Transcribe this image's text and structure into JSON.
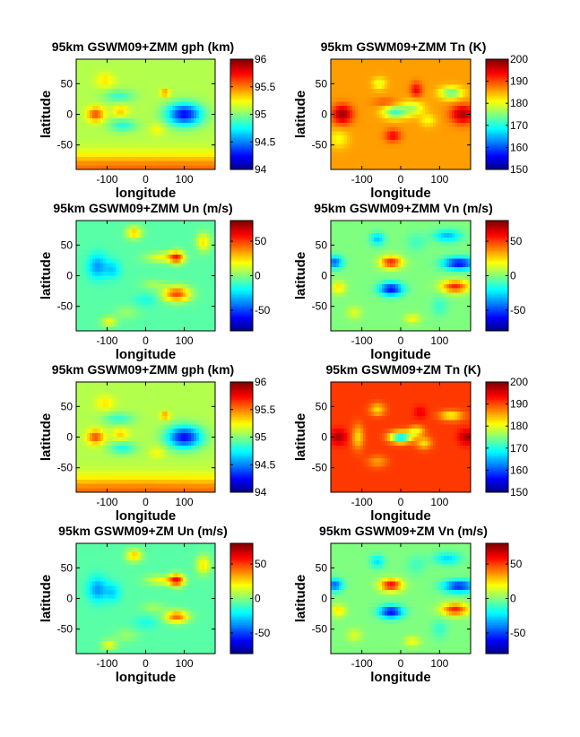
{
  "chart_data": [
    {
      "type": "heatmap",
      "title": "95km GSWM09+ZMM gph (km)",
      "xlabel": "longitude",
      "ylabel": "latitude",
      "xlim": [
        -180,
        180
      ],
      "ylim": [
        -90,
        90
      ],
      "xticks": [
        -100,
        0,
        100
      ],
      "yticks": [
        -50,
        0,
        50
      ],
      "colormap": "jet",
      "clim": [
        94,
        96
      ],
      "colorbar_ticks": [
        94,
        94.5,
        95,
        95.5,
        96
      ],
      "field": {
        "base": 95.1,
        "features": [
          [
            -130,
            0,
            0.5,
            22,
            12
          ],
          [
            -65,
            5,
            0.25,
            20,
            10
          ],
          [
            -105,
            55,
            0.2,
            25,
            12
          ],
          [
            50,
            35,
            0.4,
            12,
            6
          ],
          [
            100,
            0,
            -0.85,
            45,
            18
          ],
          [
            -60,
            -18,
            -0.3,
            35,
            10
          ],
          [
            -70,
            30,
            -0.25,
            40,
            10
          ],
          [
            30,
            -25,
            0.15,
            20,
            10
          ],
          [
            0,
            -90,
            0.45,
            1000,
            25
          ]
        ]
      }
    },
    {
      "type": "heatmap",
      "title": "95km GSWM09+ZMM Tn (K)",
      "xlabel": "longitude",
      "ylabel": "latitude",
      "xlim": [
        -180,
        180
      ],
      "ylim": [
        -90,
        90
      ],
      "xticks": [
        -100,
        0,
        100
      ],
      "yticks": [
        -50,
        0,
        50
      ],
      "colormap": "jet",
      "clim": [
        150,
        200
      ],
      "colorbar_ticks": [
        150,
        160,
        170,
        180,
        190,
        200
      ],
      "field": {
        "base": 186,
        "features": [
          [
            -150,
            0,
            13,
            25,
            15
          ],
          [
            160,
            0,
            12,
            30,
            15
          ],
          [
            -15,
            3,
            -14,
            30,
            10
          ],
          [
            30,
            10,
            -8,
            30,
            12
          ],
          [
            70,
            -10,
            -5,
            20,
            10
          ],
          [
            -20,
            -35,
            8,
            20,
            10
          ],
          [
            40,
            40,
            8,
            15,
            12
          ],
          [
            -55,
            50,
            -6,
            18,
            10
          ],
          [
            130,
            35,
            -12,
            30,
            10
          ],
          [
            -160,
            -40,
            -5,
            25,
            15
          ],
          [
            -40,
            20,
            4,
            30,
            6
          ]
        ]
      }
    },
    {
      "type": "heatmap",
      "title": "95km GSWM09+ZMM Un (m/s)",
      "xlabel": "longitude",
      "ylabel": "latitude",
      "xlim": [
        -180,
        180
      ],
      "ylim": [
        -90,
        90
      ],
      "xticks": [
        -100,
        0,
        100
      ],
      "yticks": [
        -50,
        0,
        50
      ],
      "colormap": "jet",
      "clim": [
        -80,
        80
      ],
      "colorbar_ticks": [
        -50,
        0,
        50
      ],
      "field": {
        "base": -6,
        "features": [
          [
            -125,
            15,
            -30,
            25,
            20
          ],
          [
            -85,
            10,
            -20,
            20,
            15
          ],
          [
            80,
            30,
            55,
            20,
            10
          ],
          [
            80,
            -30,
            55,
            35,
            12
          ],
          [
            40,
            30,
            25,
            40,
            8
          ],
          [
            -30,
            70,
            35,
            20,
            10
          ],
          [
            150,
            55,
            30,
            18,
            15
          ],
          [
            -95,
            -75,
            25,
            20,
            8
          ],
          [
            0,
            -40,
            -10,
            30,
            10
          ],
          [
            20,
            -15,
            12,
            30,
            8
          ],
          [
            -50,
            -60,
            10,
            30,
            10
          ]
        ]
      }
    },
    {
      "type": "heatmap",
      "title": "95km GSWM09+ZMM Vn (m/s)",
      "xlabel": "longitude",
      "ylabel": "latitude",
      "xlim": [
        -180,
        180
      ],
      "ylim": [
        -90,
        90
      ],
      "xticks": [
        -100,
        0,
        100
      ],
      "yticks": [
        -50,
        0,
        50
      ],
      "colormap": "jet",
      "clim": [
        -80,
        80
      ],
      "colorbar_ticks": [
        -50,
        0,
        50
      ],
      "field": {
        "base": 0,
        "features": [
          [
            -25,
            22,
            55,
            28,
            10
          ],
          [
            -25,
            -22,
            -60,
            30,
            10
          ],
          [
            150,
            20,
            -60,
            40,
            10
          ],
          [
            140,
            -18,
            55,
            35,
            10
          ],
          [
            -170,
            22,
            -45,
            20,
            10
          ],
          [
            -160,
            -20,
            25,
            18,
            10
          ],
          [
            -60,
            60,
            -30,
            18,
            10
          ],
          [
            120,
            65,
            -30,
            35,
            10
          ],
          [
            -120,
            -60,
            15,
            20,
            10
          ],
          [
            30,
            -70,
            20,
            20,
            8
          ],
          [
            100,
            -50,
            -12,
            20,
            15
          ],
          [
            40,
            55,
            -10,
            25,
            15
          ]
        ]
      }
    },
    {
      "type": "heatmap",
      "title": "95km GSWM09+ZMM gph (km)",
      "xlabel": "longitude",
      "ylabel": "latitude",
      "xlim": [
        -180,
        180
      ],
      "ylim": [
        -90,
        90
      ],
      "xticks": [
        -100,
        0,
        100
      ],
      "yticks": [
        -50,
        0,
        50
      ],
      "colormap": "jet",
      "clim": [
        94,
        96
      ],
      "colorbar_ticks": [
        94,
        94.5,
        95,
        95.5,
        96
      ],
      "field": {
        "base": 95.1,
        "features": [
          [
            -130,
            0,
            0.5,
            22,
            12
          ],
          [
            -65,
            5,
            0.25,
            20,
            10
          ],
          [
            -105,
            55,
            0.2,
            25,
            12
          ],
          [
            50,
            35,
            0.4,
            12,
            6
          ],
          [
            100,
            0,
            -0.85,
            45,
            18
          ],
          [
            -60,
            -18,
            -0.3,
            35,
            10
          ],
          [
            -70,
            30,
            -0.25,
            40,
            10
          ],
          [
            30,
            -25,
            0.15,
            20,
            10
          ],
          [
            0,
            -90,
            0.45,
            1000,
            25
          ]
        ]
      }
    },
    {
      "type": "heatmap",
      "title": "95km GSWM09+ZM Tn (K)",
      "xlabel": "longitude",
      "ylabel": "latitude",
      "xlim": [
        -180,
        180
      ],
      "ylim": [
        -90,
        90
      ],
      "xticks": [
        -100,
        0,
        100
      ],
      "yticks": [
        -50,
        0,
        50
      ],
      "colormap": "jet",
      "clim": [
        150,
        200
      ],
      "colorbar_ticks": [
        150,
        160,
        170,
        180,
        190,
        200
      ],
      "field": {
        "base": 191,
        "features": [
          [
            -160,
            0,
            7,
            20,
            12
          ],
          [
            170,
            0,
            7,
            20,
            12
          ],
          [
            0,
            0,
            -24,
            28,
            9
          ],
          [
            40,
            10,
            -10,
            20,
            8
          ],
          [
            60,
            -10,
            -8,
            20,
            10
          ],
          [
            -60,
            45,
            -8,
            20,
            10
          ],
          [
            50,
            40,
            4,
            15,
            10
          ],
          [
            130,
            35,
            -10,
            30,
            8
          ],
          [
            -60,
            -40,
            -5,
            25,
            10
          ],
          [
            -110,
            0,
            -8,
            15,
            20
          ]
        ]
      }
    },
    {
      "type": "heatmap",
      "title": "95km GSWM09+ZM Un (m/s)",
      "xlabel": "longitude",
      "ylabel": "latitude",
      "xlim": [
        -180,
        180
      ],
      "ylim": [
        -90,
        90
      ],
      "xticks": [
        -100,
        0,
        100
      ],
      "yticks": [
        -50,
        0,
        50
      ],
      "colormap": "jet",
      "clim": [
        -80,
        80
      ],
      "colorbar_ticks": [
        -50,
        0,
        50
      ],
      "field": {
        "base": -6,
        "features": [
          [
            -125,
            15,
            -30,
            25,
            20
          ],
          [
            -85,
            10,
            -20,
            20,
            15
          ],
          [
            80,
            30,
            60,
            20,
            10
          ],
          [
            80,
            -30,
            50,
            30,
            10
          ],
          [
            40,
            30,
            25,
            40,
            8
          ],
          [
            -30,
            70,
            35,
            20,
            10
          ],
          [
            150,
            55,
            30,
            18,
            15
          ],
          [
            -95,
            -75,
            25,
            20,
            8
          ],
          [
            0,
            -40,
            -10,
            30,
            10
          ],
          [
            20,
            -15,
            12,
            30,
            8
          ],
          [
            -50,
            -60,
            10,
            30,
            10
          ]
        ]
      }
    },
    {
      "type": "heatmap",
      "title": "95km GSWM09+ZM Vn (m/s)",
      "xlabel": "longitude",
      "ylabel": "latitude",
      "xlim": [
        -180,
        180
      ],
      "ylim": [
        -90,
        90
      ],
      "xticks": [
        -100,
        0,
        100
      ],
      "yticks": [
        -50,
        0,
        50
      ],
      "colormap": "jet",
      "clim": [
        -80,
        80
      ],
      "colorbar_ticks": [
        -50,
        0,
        50
      ],
      "field": {
        "base": 0,
        "features": [
          [
            -25,
            22,
            60,
            28,
            10
          ],
          [
            -25,
            -22,
            -60,
            30,
            10
          ],
          [
            150,
            20,
            -55,
            40,
            10
          ],
          [
            140,
            -18,
            55,
            35,
            10
          ],
          [
            -170,
            22,
            -45,
            20,
            10
          ],
          [
            -160,
            -20,
            25,
            18,
            10
          ],
          [
            -60,
            60,
            -25,
            18,
            10
          ],
          [
            120,
            65,
            -25,
            35,
            10
          ],
          [
            -120,
            -60,
            15,
            20,
            10
          ],
          [
            30,
            -70,
            20,
            20,
            8
          ],
          [
            100,
            -50,
            -12,
            20,
            15
          ],
          [
            40,
            55,
            -10,
            25,
            15
          ]
        ]
      }
    }
  ]
}
